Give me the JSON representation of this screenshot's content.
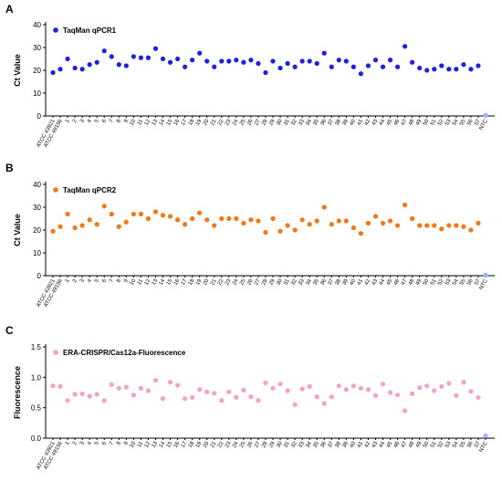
{
  "chart_data": [
    {
      "type": "scatter",
      "panel": "A",
      "ylabel": "Ct Value",
      "ylim": [
        0,
        40
      ],
      "yticks": [
        0,
        10,
        20,
        30,
        40
      ],
      "grid": false,
      "legend_position": "top-left",
      "series": [
        {
          "name": "TaqMan qPCR1",
          "color": "#1f1fe0",
          "values": [
            19,
            20.5,
            25,
            21,
            20.5,
            22.5,
            23.5,
            28.5,
            26,
            22.5,
            22,
            26,
            25.5,
            25.5,
            29.5,
            25,
            23.5,
            25,
            21.5,
            24.5,
            27.5,
            24,
            21.5,
            24,
            24,
            24.5,
            23.5,
            24.5,
            23,
            19,
            24,
            21,
            23,
            21.5,
            24,
            24,
            23,
            27.5,
            21.5,
            24.5,
            24,
            21.5,
            18.5,
            22,
            24.5,
            21.5,
            24.5,
            21.5,
            30.5,
            23.5,
            21,
            20,
            20.5,
            22,
            20.5,
            20.5,
            22.5,
            20.5,
            22,
            0.3
          ]
        }
      ]
    },
    {
      "type": "scatter",
      "panel": "B",
      "ylabel": "Ct Value",
      "ylim": [
        0,
        40
      ],
      "yticks": [
        0,
        10,
        20,
        30,
        40
      ],
      "grid": false,
      "legend_position": "top-left",
      "series": [
        {
          "name": "TaqMan qPCR2",
          "color": "#f07818",
          "values": [
            19.5,
            21.5,
            27,
            21,
            22,
            24.5,
            22.5,
            30.5,
            27,
            21.5,
            23.5,
            27,
            27,
            25,
            28,
            26.5,
            26,
            24.5,
            22.5,
            25,
            27.5,
            24.5,
            22,
            25,
            25,
            25,
            23,
            24.5,
            24,
            19,
            25,
            19.5,
            22,
            20,
            24.5,
            22.5,
            24,
            30,
            22.5,
            24,
            24,
            21,
            18.5,
            23,
            26,
            23,
            24,
            22,
            31,
            25,
            22,
            22,
            22,
            20.5,
            22,
            22,
            21.5,
            20,
            23,
            0.3
          ]
        }
      ]
    },
    {
      "type": "scatter",
      "panel": "C",
      "ylabel": "Fluorescence",
      "ylim": [
        0,
        1.5
      ],
      "yticks": [
        "0.0",
        "0.5",
        "1.0",
        "1.5"
      ],
      "grid": false,
      "legend_position": "top-left",
      "series": [
        {
          "name": "ERA-CRISPR/Cas12a-Fluorescence",
          "color": "#f4a0c8",
          "values": [
            0.86,
            0.85,
            0.62,
            0.72,
            0.73,
            0.69,
            0.72,
            0.62,
            0.88,
            0.82,
            0.84,
            0.71,
            0.82,
            0.78,
            0.95,
            0.65,
            0.92,
            0.87,
            0.65,
            0.67,
            0.8,
            0.76,
            0.74,
            0.62,
            0.76,
            0.67,
            0.79,
            0.68,
            0.62,
            0.91,
            0.82,
            0.89,
            0.78,
            0.55,
            0.81,
            0.85,
            0.68,
            0.57,
            0.68,
            0.86,
            0.8,
            0.86,
            0.82,
            0.8,
            0.7,
            0.89,
            0.75,
            0.71,
            0.45,
            0.73,
            0.83,
            0.86,
            0.78,
            0.85,
            0.9,
            0.7,
            0.92,
            0.77,
            0.67,
            0.04
          ]
        }
      ]
    }
  ],
  "x_categories": [
    "ATCC 43921",
    "ATCC 49156",
    "1",
    "2",
    "3",
    "4",
    "5",
    "6",
    "7",
    "8",
    "9",
    "10",
    "11",
    "12",
    "13",
    "14",
    "15",
    "16",
    "17",
    "18",
    "19",
    "20",
    "21",
    "22",
    "23",
    "24",
    "25",
    "26",
    "27",
    "28",
    "29",
    "30",
    "31",
    "32",
    "33",
    "34",
    "35",
    "36",
    "37",
    "38",
    "39",
    "40",
    "41",
    "42",
    "43",
    "44",
    "45",
    "46",
    "47",
    "48",
    "49",
    "50",
    "51",
    "52",
    "53",
    "54",
    "55",
    "56",
    "57",
    "NTC"
  ],
  "ntc_color": "#9ab4ff"
}
